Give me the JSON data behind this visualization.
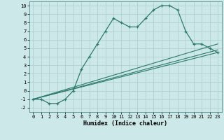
{
  "xlabel": "Humidex (Indice chaleur)",
  "background_color": "#cce8e8",
  "grid_color": "#b0d0d0",
  "line_color": "#2d7a6e",
  "xlim": [
    -0.5,
    23.5
  ],
  "ylim": [
    -2.5,
    10.5
  ],
  "xticks": [
    0,
    1,
    2,
    3,
    4,
    5,
    6,
    7,
    8,
    9,
    10,
    11,
    12,
    13,
    14,
    15,
    16,
    17,
    18,
    19,
    20,
    21,
    22,
    23
  ],
  "yticks": [
    -2,
    -1,
    0,
    1,
    2,
    3,
    4,
    5,
    6,
    7,
    8,
    9,
    10
  ],
  "line1_x": [
    0,
    1,
    2,
    3,
    4,
    5,
    6,
    7,
    8,
    9,
    10,
    11,
    12,
    13,
    14,
    15,
    16,
    17,
    18,
    19,
    20,
    21,
    22,
    23
  ],
  "line1_y": [
    -1,
    -1,
    -1.5,
    -1.5,
    -1,
    0,
    2.5,
    4,
    5.5,
    7,
    8.5,
    8,
    7.5,
    7.5,
    8.5,
    9.5,
    10,
    10,
    9.5,
    7,
    5.5,
    5.5,
    5,
    4.5
  ],
  "line2_x": [
    0,
    23
  ],
  "line2_y": [
    -1,
    4.5
  ],
  "line3_x": [
    0,
    23
  ],
  "line3_y": [
    -1,
    5.5
  ],
  "line4_x": [
    0,
    23
  ],
  "line4_y": [
    -1,
    4.8
  ],
  "tick_fontsize": 5,
  "xlabel_fontsize": 6
}
